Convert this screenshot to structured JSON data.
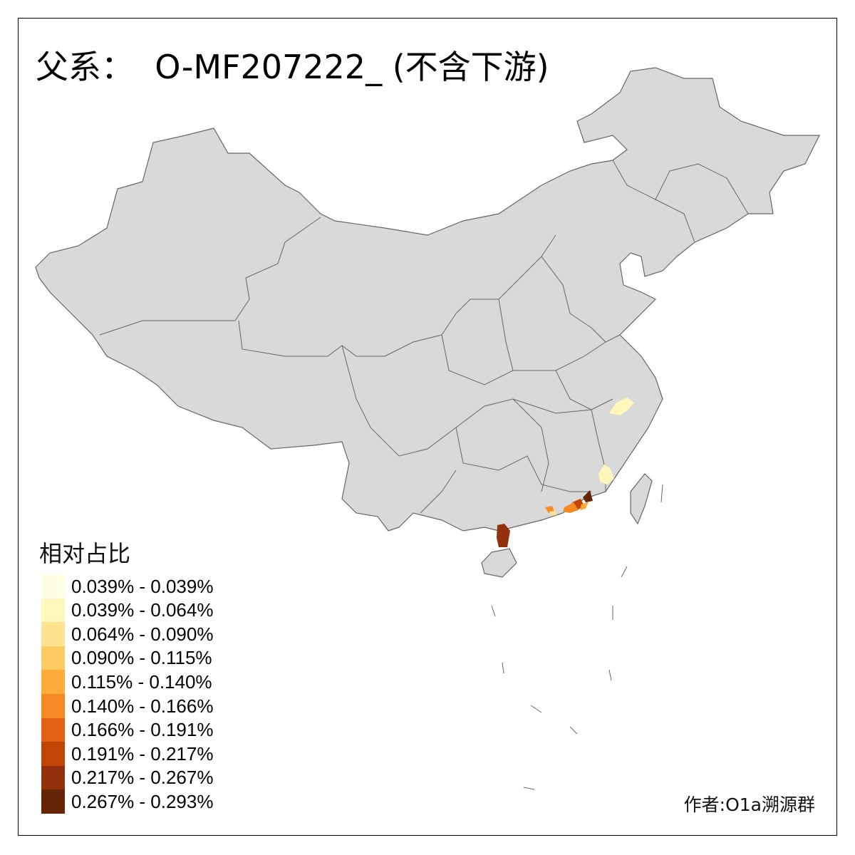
{
  "title": "父系：  O-MF207222_ (不含下游)",
  "legend": {
    "title": "相对占比",
    "items": [
      {
        "label": "0.039% - 0.039%",
        "color": "#ffffe5"
      },
      {
        "label": "0.039% - 0.064%",
        "color": "#fff7bc"
      },
      {
        "label": "0.064% - 0.090%",
        "color": "#fee391"
      },
      {
        "label": "0.090% - 0.115%",
        "color": "#fecb63"
      },
      {
        "label": "0.115% - 0.140%",
        "color": "#fdab3a"
      },
      {
        "label": "0.140% - 0.166%",
        "color": "#f58a24"
      },
      {
        "label": "0.166% - 0.191%",
        "color": "#e06212"
      },
      {
        "label": "0.191% - 0.217%",
        "color": "#c24505"
      },
      {
        "label": "0.217% - 0.267%",
        "color": "#91300a"
      },
      {
        "label": "0.267% - 0.293%",
        "color": "#662506"
      }
    ]
  },
  "author": "作者:O1a溯源群",
  "colors": {
    "land": "#d9d9d9",
    "border": "#666666",
    "no_data": "#d9d9d9"
  }
}
